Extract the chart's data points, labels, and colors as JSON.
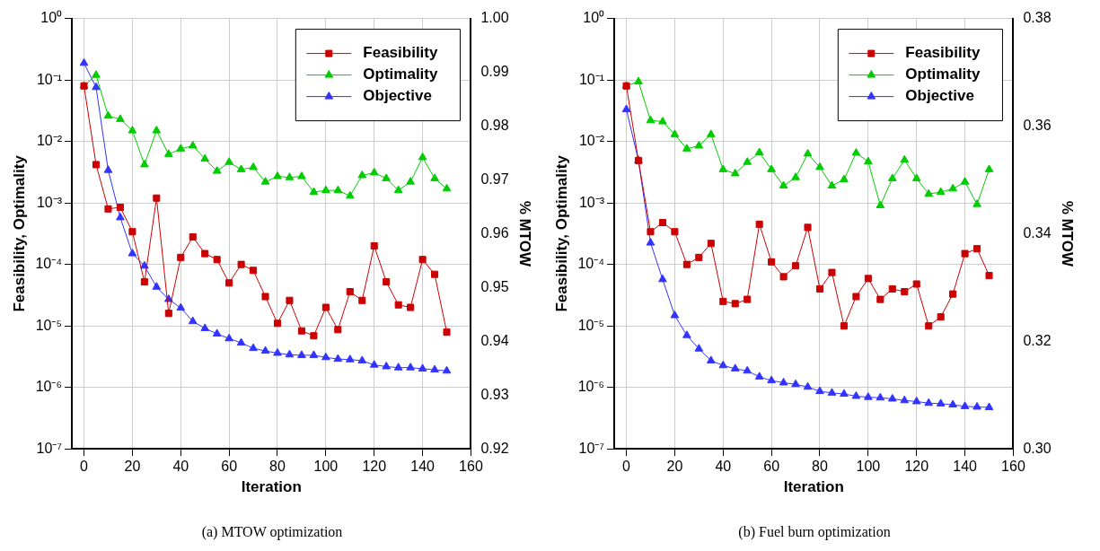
{
  "chart_data": [
    {
      "type": "line",
      "title": "(a) MTOW optimization",
      "xlabel": "Iteration",
      "ylabel": "Feasibility, Optimality",
      "y2label": "% MTOW",
      "x": [
        0,
        5,
        10,
        15,
        20,
        25,
        30,
        35,
        40,
        45,
        50,
        55,
        60,
        65,
        70,
        75,
        80,
        85,
        90,
        95,
        100,
        105,
        110,
        115,
        120,
        125,
        130,
        135,
        140,
        145,
        150
      ],
      "series": [
        {
          "name": "Feasibility",
          "color": "#cc0000",
          "marker": "square",
          "values": [
            0.08,
            0.0042,
            0.0008,
            0.00085,
            0.00034,
            5.2e-05,
            0.0012,
            1.6e-05,
            0.00013,
            0.00028,
            0.00015,
            0.00012,
            5e-05,
            0.0001,
            8e-05,
            3e-05,
            1.1e-05,
            2.6e-05,
            8.3e-06,
            6.9e-06,
            2e-05,
            8.7e-06,
            3.6e-05,
            2.6e-05,
            0.0002,
            5.2e-05,
            2.2e-05,
            2e-05,
            0.00012,
            6.9e-05,
            7.9e-06
          ]
        },
        {
          "name": "Optimality",
          "color": "#00cc00",
          "marker": "triangle",
          "values": [
            0.08,
            0.12,
            0.026,
            0.023,
            0.015,
            0.0042,
            0.015,
            0.0062,
            0.0076,
            0.0085,
            0.0052,
            0.0033,
            0.0046,
            0.0035,
            0.0038,
            0.0022,
            0.0027,
            0.0026,
            0.0027,
            0.0015,
            0.0016,
            0.0016,
            0.0013,
            0.0028,
            0.0031,
            0.0025,
            0.0016,
            0.0022,
            0.0055,
            0.0025,
            0.0017
          ]
        },
        {
          "name": "Objective",
          "color": "#3333ff",
          "marker": "triangle",
          "axis": "y2",
          "values": [
            0.9917,
            0.9872,
            0.9718,
            0.963,
            0.9563,
            0.954,
            0.9501,
            0.9478,
            0.9462,
            0.9437,
            0.9424,
            0.9414,
            0.9405,
            0.9397,
            0.9387,
            0.9382,
            0.9378,
            0.9375,
            0.9374,
            0.9374,
            0.937,
            0.9367,
            0.9366,
            0.9364,
            0.9356,
            0.9353,
            0.9351,
            0.9351,
            0.9349,
            0.9347,
            0.9345
          ]
        }
      ],
      "log": "y",
      "xlim": [
        -5,
        160
      ],
      "xticks": [
        0,
        20,
        40,
        60,
        80,
        100,
        120,
        140,
        160
      ],
      "ylim": [
        1e-07,
        1
      ],
      "yticks": [
        {
          "value": 1e-07,
          "label": "10⁻⁷"
        },
        {
          "value": 1e-06,
          "label": "10⁻⁶"
        },
        {
          "value": 1e-05,
          "label": "10⁻⁵"
        },
        {
          "value": 0.0001,
          "label": "10⁻⁴"
        },
        {
          "value": 0.001,
          "label": "10⁻³"
        },
        {
          "value": 0.01,
          "label": "10⁻²"
        },
        {
          "value": 0.1,
          "label": "10⁻¹"
        },
        {
          "value": 1,
          "label": "10⁰"
        }
      ],
      "y2lim": [
        0.92,
        1.0
      ],
      "y2ticks": [
        0.92,
        0.93,
        0.94,
        0.95,
        0.96,
        0.97,
        0.98,
        0.99,
        {
          "value": 1.0,
          "label": "1.00"
        }
      ],
      "grid": true,
      "legend": "top right",
      "line_style": "solid"
    },
    {
      "type": "line",
      "title": "(b) Fuel burn optimization",
      "xlabel": "Iteration",
      "ylabel": "Feasibility, Optimality",
      "y2label": "% MTOW",
      "x": [
        0,
        5,
        10,
        15,
        20,
        25,
        30,
        35,
        40,
        45,
        50,
        55,
        60,
        65,
        70,
        75,
        80,
        85,
        90,
        95,
        100,
        105,
        110,
        115,
        120,
        125,
        130,
        135,
        140,
        145,
        150
      ],
      "series": [
        {
          "name": "Feasibility",
          "color": "#cc0000",
          "marker": "square",
          "values": [
            0.08,
            0.0049,
            0.00034,
            0.00048,
            0.00034,
            0.0001,
            0.00013,
            0.00022,
            2.5e-05,
            2.3e-05,
            2.7e-05,
            0.00045,
            0.00011,
            6.3e-05,
            9.5e-05,
            0.0004,
            4e-05,
            7.4e-05,
            1e-05,
            3e-05,
            5.9e-05,
            2.7e-05,
            4e-05,
            3.6e-05,
            4.8e-05,
            1e-05,
            1.4e-05,
            3.3e-05,
            0.00015,
            0.00018,
            6.6e-05
          ]
        },
        {
          "name": "Optimality",
          "color": "#00cc00",
          "marker": "triangle",
          "values": [
            0.08,
            0.094,
            0.022,
            0.021,
            0.013,
            0.0076,
            0.0085,
            0.013,
            0.0035,
            0.003,
            0.0046,
            0.0066,
            0.0035,
            0.0019,
            0.0026,
            0.0063,
            0.0038,
            0.0019,
            0.0024,
            0.0065,
            0.0047,
            0.00091,
            0.0025,
            0.005,
            0.0025,
            0.0014,
            0.0015,
            0.0017,
            0.0022,
            0.00095,
            0.0035
          ]
        },
        {
          "name": "Objective",
          "color": "#3333ff",
          "marker": "triangle",
          "axis": "y2",
          "values": [
            0.3631,
            0.3536,
            0.3383,
            0.3315,
            0.3248,
            0.3211,
            0.3186,
            0.3164,
            0.3155,
            0.3149,
            0.3145,
            0.3134,
            0.3127,
            0.3123,
            0.312,
            0.3115,
            0.3107,
            0.3104,
            0.3102,
            0.3098,
            0.3096,
            0.3095,
            0.3093,
            0.309,
            0.3088,
            0.3085,
            0.3084,
            0.3082,
            0.3079,
            0.3078,
            0.3077
          ]
        }
      ],
      "log": "y",
      "xlim": [
        -5,
        160
      ],
      "xticks": [
        0,
        20,
        40,
        60,
        80,
        100,
        120,
        140,
        160
      ],
      "ylim": [
        1e-07,
        1
      ],
      "yticks": [
        {
          "value": 1e-07,
          "label": "10⁻⁷"
        },
        {
          "value": 1e-06,
          "label": "10⁻⁶"
        },
        {
          "value": 1e-05,
          "label": "10⁻⁵"
        },
        {
          "value": 0.0001,
          "label": "10⁻⁴"
        },
        {
          "value": 0.001,
          "label": "10⁻³"
        },
        {
          "value": 0.01,
          "label": "10⁻²"
        },
        {
          "value": 0.1,
          "label": "10⁻¹"
        },
        {
          "value": 1,
          "label": "10⁰"
        }
      ],
      "y2lim": [
        0.3,
        0.38
      ],
      "y2ticks": [
        {
          "value": 0.3,
          "label": "0.30"
        },
        0.32,
        0.34,
        0.36,
        0.38
      ],
      "grid": true,
      "legend": "top right",
      "line_style": "solid"
    }
  ]
}
